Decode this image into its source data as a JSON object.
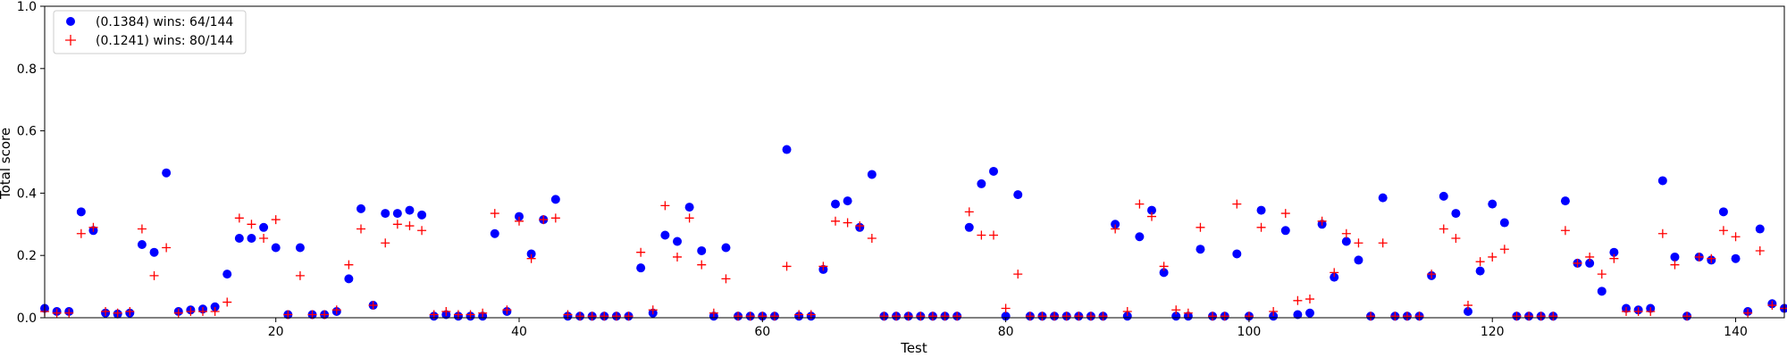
{
  "chart_data": {
    "type": "scatter",
    "title": "",
    "xlabel": "Test",
    "ylabel": "Total score",
    "xlim": [
      1,
      144
    ],
    "ylim": [
      0,
      1
    ],
    "xticks": [
      20,
      40,
      60,
      80,
      100,
      120,
      140
    ],
    "yticks": [
      0.0,
      0.2,
      0.4,
      0.6,
      0.8,
      1.0
    ],
    "ytick_labels": [
      "0.0",
      "0.2",
      "0.4",
      "0.6",
      "0.8",
      "1.0"
    ],
    "grid": false,
    "legend_position": "top-left",
    "series": [
      {
        "name": "(0.1384) wins: 64/144",
        "marker": "circle",
        "color": "#0000ff",
        "x": [
          1,
          2,
          3,
          4,
          5,
          6,
          7,
          8,
          9,
          10,
          11,
          12,
          13,
          14,
          15,
          16,
          17,
          18,
          19,
          20,
          21,
          22,
          23,
          24,
          25,
          26,
          27,
          28,
          29,
          30,
          31,
          32,
          33,
          34,
          35,
          36,
          37,
          38,
          39,
          40,
          41,
          42,
          43,
          44,
          45,
          46,
          47,
          48,
          49,
          50,
          51,
          52,
          53,
          54,
          55,
          56,
          57,
          58,
          59,
          60,
          61,
          62,
          63,
          64,
          65,
          66,
          67,
          68,
          69,
          70,
          71,
          72,
          73,
          74,
          75,
          76,
          77,
          78,
          79,
          80,
          81,
          82,
          83,
          84,
          85,
          86,
          87,
          88,
          89,
          90,
          91,
          92,
          93,
          94,
          95,
          96,
          97,
          98,
          99,
          100,
          101,
          102,
          103,
          104,
          105,
          106,
          107,
          108,
          109,
          110,
          111,
          112,
          113,
          114,
          115,
          116,
          117,
          118,
          119,
          120,
          121,
          122,
          123,
          124,
          125,
          126,
          127,
          128,
          129,
          130,
          131,
          132,
          133,
          134,
          135,
          136,
          137,
          138,
          139,
          140,
          141,
          142,
          143,
          144
        ],
        "y": [
          0.03,
          0.02,
          0.02,
          0.34,
          0.28,
          0.015,
          0.012,
          0.015,
          0.235,
          0.21,
          0.465,
          0.02,
          0.025,
          0.028,
          0.035,
          0.14,
          0.255,
          0.255,
          0.29,
          0.225,
          0.01,
          0.225,
          0.01,
          0.01,
          0.02,
          0.125,
          0.35,
          0.04,
          0.335,
          0.335,
          0.345,
          0.33,
          0.005,
          0.01,
          0.005,
          0.005,
          0.005,
          0.27,
          0.02,
          0.325,
          0.205,
          0.315,
          0.38,
          0.005,
          0.005,
          0.005,
          0.005,
          0.005,
          0.005,
          0.16,
          0.015,
          0.265,
          0.245,
          0.355,
          0.215,
          0.005,
          0.225,
          0.005,
          0.005,
          0.005,
          0.005,
          0.54,
          0.005,
          0.005,
          0.155,
          0.365,
          0.375,
          0.29,
          0.46,
          0.005,
          0.005,
          0.005,
          0.005,
          0.005,
          0.005,
          0.005,
          0.29,
          0.43,
          0.47,
          0.005,
          0.395,
          0.005,
          0.005,
          0.005,
          0.005,
          0.005,
          0.005,
          0.005,
          0.3,
          0.005,
          0.26,
          0.345,
          0.145,
          0.005,
          0.005,
          0.22,
          0.005,
          0.005,
          0.205,
          0.005,
          0.345,
          0.005,
          0.28,
          0.01,
          0.015,
          0.3,
          0.13,
          0.245,
          0.185,
          0.005,
          0.385,
          0.005,
          0.005,
          0.005,
          0.135,
          0.39,
          0.335,
          0.02,
          0.15,
          0.365,
          0.305,
          0.005,
          0.005,
          0.005,
          0.005,
          0.375,
          0.175,
          0.175,
          0.085,
          0.21,
          0.03,
          0.025,
          0.03,
          0.44,
          0.195,
          0.005,
          0.195,
          0.185,
          0.34,
          0.19,
          0.02,
          0.285,
          0.045,
          0.03
        ]
      },
      {
        "name": "(0.1241) wins: 80/144",
        "marker": "plus",
        "color": "#ff0000",
        "x": [
          1,
          2,
          3,
          4,
          5,
          6,
          7,
          8,
          9,
          10,
          11,
          12,
          13,
          14,
          15,
          16,
          17,
          18,
          19,
          20,
          21,
          22,
          23,
          24,
          25,
          26,
          27,
          28,
          29,
          30,
          31,
          32,
          33,
          34,
          35,
          36,
          37,
          38,
          39,
          40,
          41,
          42,
          43,
          44,
          45,
          46,
          47,
          48,
          49,
          50,
          51,
          52,
          53,
          54,
          55,
          56,
          57,
          58,
          59,
          60,
          61,
          62,
          63,
          64,
          65,
          66,
          67,
          68,
          69,
          70,
          71,
          72,
          73,
          74,
          75,
          76,
          77,
          78,
          79,
          80,
          81,
          82,
          83,
          84,
          85,
          86,
          87,
          88,
          89,
          90,
          91,
          92,
          93,
          94,
          95,
          96,
          97,
          98,
          99,
          100,
          101,
          102,
          103,
          104,
          105,
          106,
          107,
          108,
          109,
          110,
          111,
          112,
          113,
          114,
          115,
          116,
          117,
          118,
          119,
          120,
          121,
          122,
          123,
          124,
          125,
          126,
          127,
          128,
          129,
          130,
          131,
          132,
          133,
          134,
          135,
          136,
          137,
          138,
          139,
          140,
          141,
          142,
          143,
          144
        ],
        "y": [
          0.02,
          0.015,
          0.015,
          0.27,
          0.29,
          0.02,
          0.015,
          0.02,
          0.285,
          0.135,
          0.225,
          0.015,
          0.02,
          0.02,
          0.02,
          0.05,
          0.32,
          0.3,
          0.255,
          0.315,
          0.01,
          0.135,
          0.01,
          0.01,
          0.025,
          0.17,
          0.285,
          0.04,
          0.24,
          0.3,
          0.295,
          0.28,
          0.01,
          0.02,
          0.01,
          0.01,
          0.015,
          0.335,
          0.025,
          0.31,
          0.19,
          0.315,
          0.32,
          0.01,
          0.005,
          0.005,
          0.005,
          0.005,
          0.005,
          0.21,
          0.025,
          0.36,
          0.195,
          0.32,
          0.17,
          0.015,
          0.125,
          0.005,
          0.005,
          0.005,
          0.005,
          0.165,
          0.01,
          0.01,
          0.165,
          0.31,
          0.305,
          0.295,
          0.255,
          0.005,
          0.005,
          0.005,
          0.005,
          0.005,
          0.005,
          0.005,
          0.34,
          0.265,
          0.265,
          0.03,
          0.14,
          0.005,
          0.005,
          0.005,
          0.005,
          0.005,
          0.005,
          0.005,
          0.285,
          0.02,
          0.365,
          0.325,
          0.165,
          0.025,
          0.015,
          0.29,
          0.005,
          0.005,
          0.365,
          0.005,
          0.29,
          0.02,
          0.335,
          0.055,
          0.06,
          0.31,
          0.145,
          0.27,
          0.24,
          0.005,
          0.24,
          0.005,
          0.005,
          0.005,
          0.14,
          0.285,
          0.255,
          0.04,
          0.18,
          0.195,
          0.22,
          0.005,
          0.005,
          0.005,
          0.005,
          0.28,
          0.175,
          0.195,
          0.14,
          0.19,
          0.02,
          0.02,
          0.02,
          0.27,
          0.17,
          0.005,
          0.195,
          0.19,
          0.28,
          0.26,
          0.015,
          0.215,
          0.04,
          0.03
        ]
      }
    ]
  }
}
